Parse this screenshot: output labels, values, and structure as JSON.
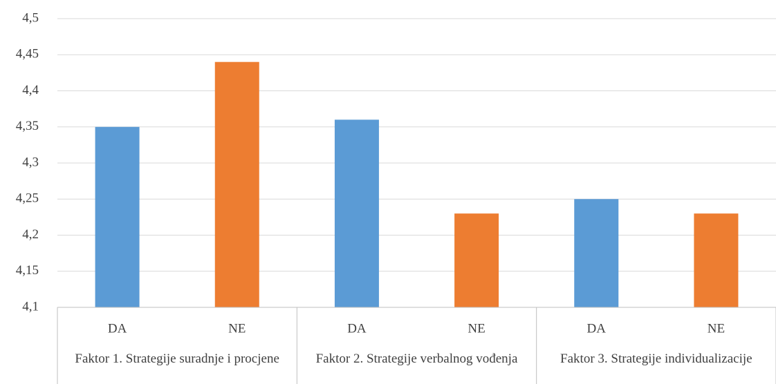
{
  "chart_data": {
    "type": "bar",
    "categories": [
      "DA",
      "NE",
      "DA",
      "NE",
      "DA",
      "NE"
    ],
    "groups": [
      "Faktor 1. Strategije suradnje i procjene",
      "Faktor 2. Strategije verbalnog vođenja",
      "Faktor 3. Strategije individualizacije"
    ],
    "values": [
      4.35,
      4.44,
      4.36,
      4.23,
      4.25,
      4.23
    ],
    "colors": [
      "#5b9bd5",
      "#ed7d31",
      "#5b9bd5",
      "#ed7d31",
      "#5b9bd5",
      "#ed7d31"
    ],
    "ylim": [
      4.1,
      4.5
    ],
    "yticks": [
      {
        "value": 4.1,
        "label": "4,1"
      },
      {
        "value": 4.15,
        "label": "4,15"
      },
      {
        "value": 4.2,
        "label": "4,2"
      },
      {
        "value": 4.25,
        "label": "4,25"
      },
      {
        "value": 4.3,
        "label": "4,3"
      },
      {
        "value": 4.35,
        "label": "4,35"
      },
      {
        "value": 4.4,
        "label": "4,4"
      },
      {
        "value": 4.45,
        "label": "4,45"
      },
      {
        "value": 4.5,
        "label": "4,5"
      }
    ],
    "grid": true
  }
}
